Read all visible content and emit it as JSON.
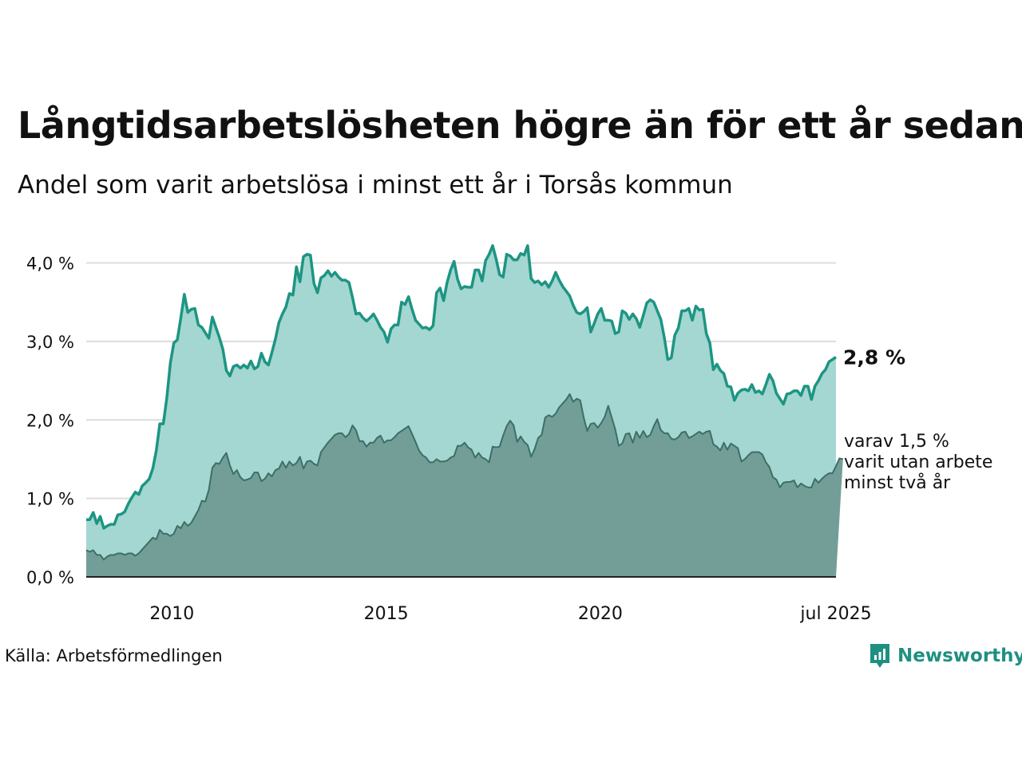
{
  "title": "Långtidsarbetslösheten högre än för ett år sedan",
  "subtitle": "Andel som varit arbetslösa i minst ett år i Torsås kommun",
  "source": "Källa: Arbetsförmedlingen",
  "brand": {
    "name": "Newsworthy",
    "icon": "newsworthy-logo-icon",
    "color": "#1f9080"
  },
  "colors": {
    "series1_line": "#1d9583",
    "series1_fill": "#a4d7d1",
    "series2_line": "#3c6f66",
    "series2_fill": "#729e97",
    "grid": "#dcdcdc",
    "axis": "#222222"
  },
  "chart_data": {
    "type": "area",
    "x_start": "2008-01",
    "x_end": "2025-07",
    "x_ticks": [
      {
        "label": "2010",
        "x": "2010-01"
      },
      {
        "label": "2015",
        "x": "2015-01"
      },
      {
        "label": "2020",
        "x": "2020-01"
      },
      {
        "label": "jul 2025",
        "x": "2025-07"
      }
    ],
    "y_ticks": [
      "0,0 %",
      "1,0 %",
      "2,0 %",
      "3,0 %",
      "4,0 %"
    ],
    "ylim": [
      0,
      4.3
    ],
    "grid": true,
    "series": [
      {
        "values": [
          0.73,
          0.73,
          0.82,
          0.68,
          0.77,
          0.62,
          0.65,
          0.67,
          0.67,
          0.79,
          0.8,
          0.83,
          0.93,
          1.01,
          1.08,
          1.05,
          1.16,
          1.2,
          1.25,
          1.38,
          1.61,
          1.95,
          1.95,
          2.28,
          2.72,
          2.98,
          3.02,
          3.3,
          3.6,
          3.37,
          3.41,
          3.42,
          3.21,
          3.18,
          3.11,
          3.04,
          3.31,
          3.18,
          3.05,
          2.9,
          2.63,
          2.56,
          2.68,
          2.7,
          2.66,
          2.7,
          2.66,
          2.75,
          2.65,
          2.68,
          2.85,
          2.74,
          2.7,
          2.86,
          3.03,
          3.24,
          3.35,
          3.44,
          3.61,
          3.59,
          3.95,
          3.76,
          4.08,
          4.11,
          4.1,
          3.74,
          3.62,
          3.81,
          3.84,
          3.9,
          3.83,
          3.88,
          3.82,
          3.78,
          3.78,
          3.75,
          3.56,
          3.35,
          3.36,
          3.3,
          3.26,
          3.3,
          3.35,
          3.27,
          3.18,
          3.12,
          2.99,
          3.16,
          3.21,
          3.21,
          3.5,
          3.47,
          3.57,
          3.41,
          3.27,
          3.22,
          3.17,
          3.18,
          3.15,
          3.2,
          3.62,
          3.68,
          3.52,
          3.75,
          3.91,
          4.02,
          3.79,
          3.67,
          3.7,
          3.69,
          3.69,
          3.91,
          3.91,
          3.77,
          4.03,
          4.11,
          4.22,
          4.05,
          3.85,
          3.82,
          4.11,
          4.09,
          4.04,
          4.04,
          4.12,
          4.1,
          4.22,
          3.8,
          3.75,
          3.77,
          3.72,
          3.76,
          3.69,
          3.77,
          3.88,
          3.78,
          3.7,
          3.64,
          3.58,
          3.46,
          3.37,
          3.35,
          3.38,
          3.43,
          3.12,
          3.23,
          3.35,
          3.42,
          3.27,
          3.27,
          3.26,
          3.1,
          3.12,
          3.39,
          3.36,
          3.28,
          3.35,
          3.29,
          3.18,
          3.33,
          3.49,
          3.53,
          3.5,
          3.39,
          3.28,
          3.05,
          2.77,
          2.79,
          3.08,
          3.17,
          3.39,
          3.39,
          3.42,
          3.27,
          3.45,
          3.4,
          3.41,
          3.1,
          2.98,
          2.64,
          2.71,
          2.63,
          2.59,
          2.43,
          2.42,
          2.25,
          2.34,
          2.38,
          2.39,
          2.37,
          2.45,
          2.35,
          2.37,
          2.33,
          2.45,
          2.58,
          2.5,
          2.34,
          2.27,
          2.2,
          2.33,
          2.34,
          2.37,
          2.37,
          2.31,
          2.43,
          2.43,
          2.26,
          2.43,
          2.5,
          2.59,
          2.64,
          2.74,
          2.77,
          2.8
        ]
      },
      {
        "values": [
          0.34,
          0.32,
          0.34,
          0.28,
          0.28,
          0.22,
          0.26,
          0.28,
          0.28,
          0.3,
          0.3,
          0.28,
          0.3,
          0.3,
          0.27,
          0.3,
          0.35,
          0.4,
          0.45,
          0.5,
          0.48,
          0.6,
          0.55,
          0.55,
          0.52,
          0.55,
          0.65,
          0.62,
          0.7,
          0.65,
          0.69,
          0.77,
          0.85,
          0.97,
          0.96,
          1.11,
          1.39,
          1.45,
          1.44,
          1.52,
          1.58,
          1.42,
          1.31,
          1.36,
          1.27,
          1.23,
          1.24,
          1.26,
          1.33,
          1.33,
          1.22,
          1.25,
          1.32,
          1.28,
          1.36,
          1.38,
          1.47,
          1.39,
          1.47,
          1.42,
          1.45,
          1.53,
          1.38,
          1.47,
          1.48,
          1.44,
          1.42,
          1.59,
          1.65,
          1.71,
          1.76,
          1.81,
          1.83,
          1.83,
          1.78,
          1.82,
          1.93,
          1.87,
          1.73,
          1.73,
          1.66,
          1.71,
          1.71,
          1.77,
          1.8,
          1.71,
          1.74,
          1.74,
          1.78,
          1.83,
          1.86,
          1.89,
          1.92,
          1.82,
          1.72,
          1.61,
          1.55,
          1.52,
          1.46,
          1.46,
          1.5,
          1.47,
          1.47,
          1.48,
          1.52,
          1.54,
          1.67,
          1.67,
          1.71,
          1.65,
          1.62,
          1.52,
          1.58,
          1.52,
          1.5,
          1.46,
          1.66,
          1.65,
          1.66,
          1.8,
          1.92,
          1.99,
          1.93,
          1.72,
          1.79,
          1.72,
          1.68,
          1.53,
          1.63,
          1.77,
          1.81,
          2.03,
          2.06,
          2.04,
          2.08,
          2.16,
          2.21,
          2.26,
          2.33,
          2.23,
          2.27,
          2.25,
          2.03,
          1.86,
          1.95,
          1.96,
          1.9,
          1.96,
          2.04,
          2.18,
          2.03,
          1.88,
          1.67,
          1.7,
          1.82,
          1.83,
          1.71,
          1.85,
          1.77,
          1.86,
          1.78,
          1.81,
          1.92,
          2.01,
          1.87,
          1.83,
          1.83,
          1.76,
          1.75,
          1.78,
          1.84,
          1.85,
          1.77,
          1.79,
          1.82,
          1.85,
          1.82,
          1.85,
          1.86,
          1.69,
          1.66,
          1.61,
          1.71,
          1.62,
          1.7,
          1.67,
          1.64,
          1.47,
          1.5,
          1.55,
          1.59,
          1.59,
          1.59,
          1.56,
          1.46,
          1.4,
          1.27,
          1.24,
          1.14,
          1.2,
          1.21,
          1.21,
          1.23,
          1.14,
          1.19,
          1.16,
          1.14,
          1.14,
          1.25,
          1.2,
          1.25,
          1.29,
          1.32,
          1.32,
          1.41,
          1.51,
          1.5
        ]
      }
    ],
    "annotations": [
      {
        "series": 0,
        "text": "2,8 %",
        "bold": true
      },
      {
        "series": 1,
        "lines": [
          "varav 1,5 %",
          "varit utan arbete",
          "minst två år"
        ]
      }
    ]
  }
}
